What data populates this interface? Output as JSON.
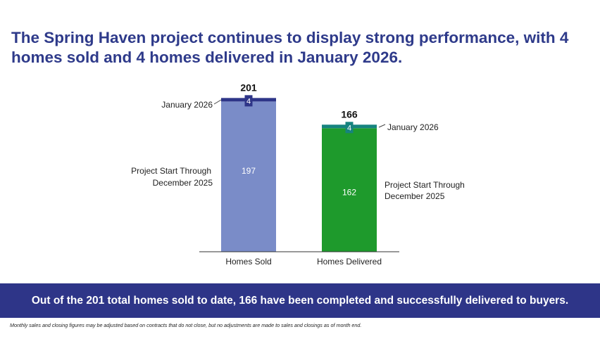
{
  "headline": "The Spring Haven project continues to display strong performance, with 4 homes sold and 4 homes delivered in January 2026.",
  "banner": "Out of the 201 total homes sold to date, 166 have been completed and successfully delivered to buyers.",
  "footnote": "Monthly sales and closing figures may be adjusted based on contracts that do not close, but no adjustments are made to sales and closings as of month end.",
  "colors": {
    "headline": "#2e3a8a",
    "banner_bg": "#2e3588",
    "sold_base": "#7a8cc8",
    "sold_month": "#2e3588",
    "delivered_base": "#1e9a2c",
    "delivered_month": "#16837f"
  },
  "chart_data": {
    "type": "bar",
    "stacked": true,
    "categories": [
      "Homes Sold",
      "Homes Delivered"
    ],
    "series": [
      {
        "name": "Project Start Through December 2025",
        "values": [
          197,
          162
        ]
      },
      {
        "name": "January 2026",
        "values": [
          4,
          4
        ]
      }
    ],
    "totals": [
      201,
      166
    ],
    "ylim": [
      0,
      205
    ],
    "grid": false,
    "segment_labels": {
      "left": {
        "base": "Project Start Through December 2025",
        "month": "January 2026"
      },
      "right": {
        "base": "Project Start Through December 2025",
        "month": "January 2026"
      }
    }
  }
}
